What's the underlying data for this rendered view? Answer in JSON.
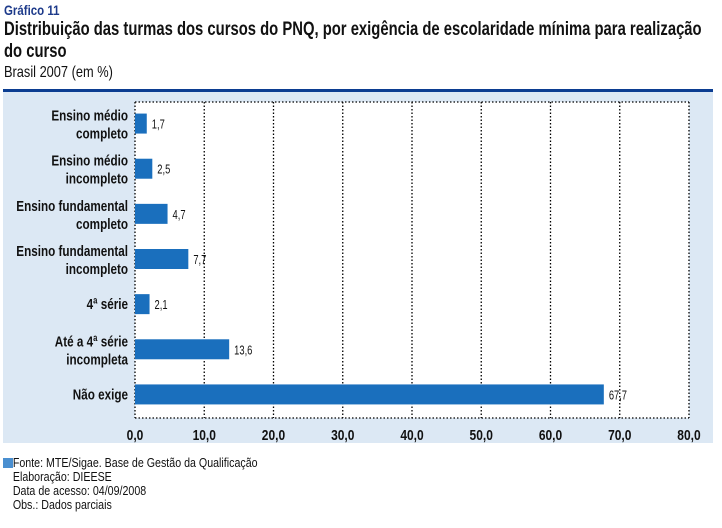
{
  "header": {
    "chart_number": "Gráfico 11",
    "title": "Distribuição das turmas dos cursos do PNQ, por exigência de escolaridade mínima para realização do curso",
    "subtitle": "Brasil 2007 (em %)"
  },
  "chart_data": {
    "type": "bar",
    "orientation": "horizontal",
    "title": "Distribuição das turmas dos cursos do PNQ, por exigência de escolaridade mínima para realização do curso",
    "subtitle": "Brasil 2007 (em %)",
    "categories": [
      [
        "Ensino médio",
        "completo"
      ],
      [
        "Ensino médio",
        "incompleto"
      ],
      [
        "Ensino fundamental",
        "completo"
      ],
      [
        "Ensino fundamental",
        "incompleto"
      ],
      [
        "4ª série"
      ],
      [
        "Até a 4ª série",
        "incompleta"
      ],
      [
        "Não exige"
      ]
    ],
    "values": [
      1.7,
      2.5,
      4.7,
      7.7,
      2.1,
      13.6,
      67.7
    ],
    "value_labels": [
      "1,7",
      "2,5",
      "4,7",
      "7,7",
      "2,1",
      "13,6",
      "67,7"
    ],
    "xlim": [
      0,
      80
    ],
    "xticks": [
      0,
      10,
      20,
      30,
      40,
      50,
      60,
      70,
      80
    ],
    "xtick_labels": [
      "0,0",
      "10,0",
      "20,0",
      "30,0",
      "40,0",
      "50,0",
      "60,0",
      "70,0",
      "80,0"
    ],
    "xlabel": "",
    "ylabel": "",
    "grid": "vertical dotted",
    "bar_color": "#1a6fbd",
    "panel_color": "#dce8f4",
    "accent_color": "#0b3d91"
  },
  "footer": {
    "source": "Fonte: MTE/Sigae. Base de Gestão da Qualificação",
    "elaboration": "Elaboração: DIEESE",
    "access_date": "Data de acesso: 04/09/2008",
    "note": "Obs.: Dados parciais"
  }
}
